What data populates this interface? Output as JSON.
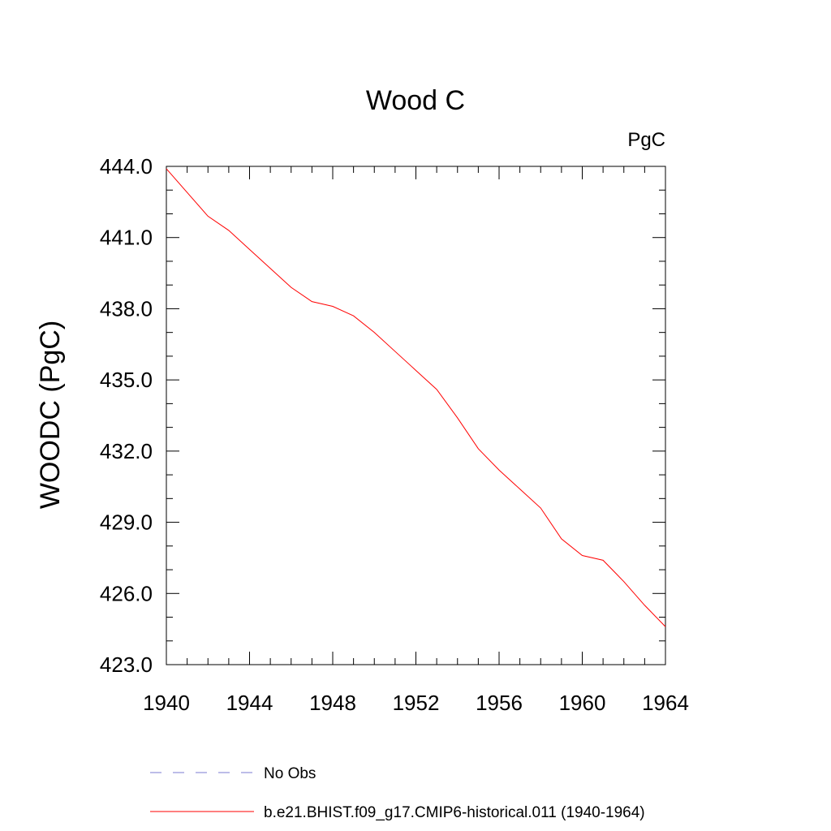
{
  "chart_data": {
    "type": "line",
    "title": "Wood C",
    "units_label": "PgC",
    "ylabel": "WOODC  (PgC)",
    "xlabel": "",
    "xlim": [
      1940,
      1964
    ],
    "ylim": [
      423.0,
      444.0
    ],
    "x_ticks": [
      "1940",
      "1944",
      "1948",
      "1952",
      "1956",
      "1960",
      "1964"
    ],
    "y_ticks": [
      "423.0",
      "426.0",
      "429.0",
      "432.0",
      "435.0",
      "438.0",
      "441.0",
      "444.0"
    ],
    "grid": false,
    "legend_position": "bottom",
    "series": [
      {
        "name": "b.e21.BHIST.f09_g17.CMIP6-historical.011 (1940-1964)",
        "color": "#ff0000",
        "style": "solid",
        "x": [
          1940,
          1941,
          1942,
          1943,
          1944,
          1945,
          1946,
          1947,
          1948,
          1949,
          1950,
          1951,
          1952,
          1953,
          1954,
          1955,
          1956,
          1957,
          1958,
          1959,
          1960,
          1961,
          1962,
          1963,
          1964
        ],
        "y": [
          443.9,
          442.9,
          441.9,
          441.3,
          440.5,
          439.7,
          438.9,
          438.3,
          438.1,
          437.7,
          437.0,
          436.2,
          435.4,
          434.6,
          433.4,
          432.1,
          431.2,
          430.4,
          429.6,
          428.3,
          427.6,
          427.4,
          426.5,
          425.5,
          424.6
        ]
      }
    ],
    "legend": [
      {
        "label": "No Obs",
        "color": "#7b7bd0",
        "style": "dashed"
      },
      {
        "label": "b.e21.BHIST.f09_g17.CMIP6-historical.011 (1940-1964)",
        "color": "#ff0000",
        "style": "solid"
      }
    ]
  }
}
